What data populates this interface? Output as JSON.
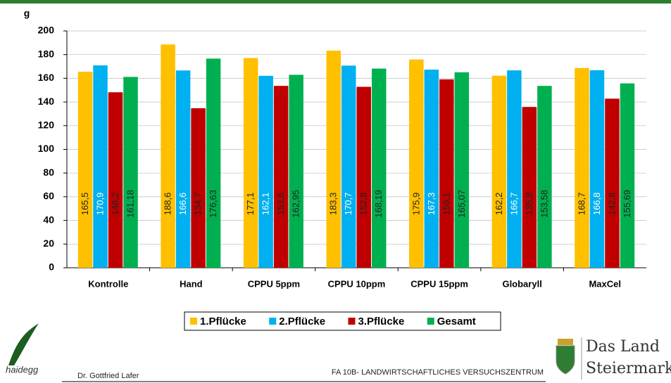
{
  "chart_data": {
    "type": "bar",
    "y_unit": "g",
    "categories": [
      "Kontrolle",
      "Hand",
      "CPPU 5ppm",
      "CPPU 10ppm",
      "CPPU 15ppm",
      "Globaryll",
      "MaxCel"
    ],
    "series": [
      {
        "name": "1.Pflücke",
        "color": "#FFC000",
        "values": [
          165.5,
          188.6,
          177.1,
          183.3,
          175.9,
          162.2,
          168.7
        ],
        "value_labels": [
          "165,5",
          "188,6",
          "177,1",
          "183,3",
          "175,9",
          "162,2",
          "168,7"
        ]
      },
      {
        "name": "2.Pflücke",
        "color": "#00B0F0",
        "values": [
          170.9,
          166.6,
          162.1,
          170.7,
          167.3,
          166.7,
          166.8
        ],
        "value_labels": [
          "170,9",
          "166,6",
          "162,1",
          "170,7",
          "167,3",
          "166,7",
          "166,8"
        ]
      },
      {
        "name": "3.Pflücke",
        "color": "#C00000",
        "values": [
          148.2,
          134.7,
          153.6,
          152.8,
          159.1,
          135.8,
          142.8
        ],
        "value_labels": [
          "148,2",
          "134,7",
          "153,6",
          "152,8",
          "159,1",
          "135,8",
          "142,8"
        ]
      },
      {
        "name": "Gesamt",
        "color": "#00B050",
        "values": [
          161.18,
          176.63,
          162.95,
          168.19,
          165.07,
          153.58,
          155.69
        ],
        "value_labels": [
          "161,18",
          "176,63",
          "162,95",
          "168,19",
          "165,07",
          "153,58",
          "155,69"
        ]
      }
    ],
    "ylim": [
      0,
      200
    ],
    "yticks": [
      0,
      20,
      40,
      60,
      80,
      100,
      120,
      140,
      160,
      180,
      200
    ],
    "grid": true,
    "legend": "bottom"
  },
  "footer": {
    "logo_text": "haidegg",
    "author": "Dr. Gottfried Lafer",
    "institution": "FA 10B- LANDWIRTSCHAFTLICHES VERSUCHSZENTRUM",
    "land_line1": "Das Land",
    "land_line2": "Steiermark"
  }
}
